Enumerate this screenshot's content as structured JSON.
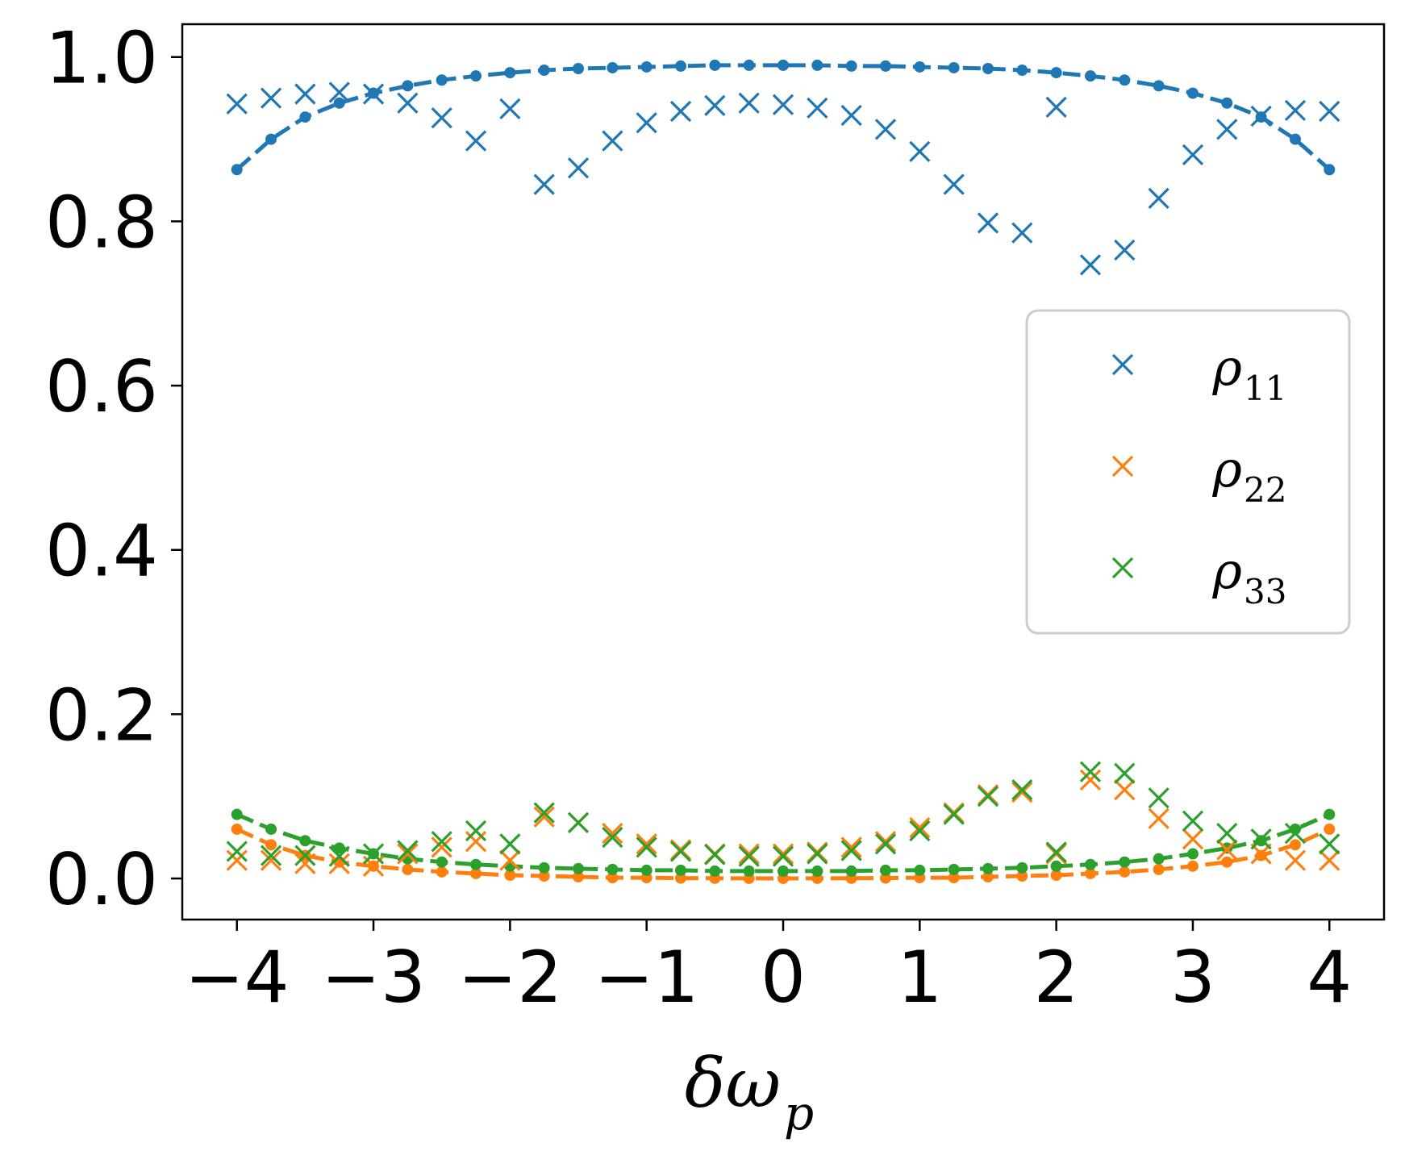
{
  "chart_data": {
    "type": "line",
    "title": "",
    "xlabel": "δω",
    "xlabel_sub": "p",
    "ylabel": "",
    "xlim": [
      -4.4,
      4.4
    ],
    "ylim": [
      -0.05,
      1.04
    ],
    "xticks": [
      -4,
      -3,
      -2,
      -1,
      0,
      1,
      2,
      3,
      4
    ],
    "xtick_labels": [
      "−4",
      "−3",
      "−2",
      "−1",
      "0",
      "1",
      "2",
      "3",
      "4"
    ],
    "yticks": [
      0.0,
      0.2,
      0.4,
      0.6,
      0.8,
      1.0
    ],
    "ytick_labels": [
      "0.0",
      "0.2",
      "0.4",
      "0.6",
      "0.8",
      "1.0"
    ],
    "legend_position": "center-right",
    "x": [
      -4,
      -3.75,
      -3.5,
      -3.25,
      -3,
      -2.75,
      -2.5,
      -2.25,
      -2,
      -1.75,
      -1.5,
      -1.25,
      -1,
      -0.75,
      -0.5,
      -0.25,
      0,
      0.25,
      0.5,
      0.75,
      1,
      1.25,
      1.5,
      1.75,
      2,
      2.25,
      2.5,
      2.75,
      3,
      3.25,
      3.5,
      3.75,
      4
    ],
    "series": [
      {
        "name": "ρ",
        "sub": "11",
        "color": "#1f77b4",
        "markers": [
          0.943,
          0.95,
          0.955,
          0.957,
          0.955,
          0.944,
          0.926,
          0.898,
          0.937,
          0.845,
          0.865,
          0.898,
          0.92,
          0.934,
          0.941,
          0.944,
          0.942,
          0.938,
          0.929,
          0.912,
          0.885,
          0.845,
          0.798,
          0.786,
          0.939,
          0.747,
          0.765,
          0.828,
          0.881,
          0.912,
          0.928,
          0.935,
          0.934
        ],
        "curve": [
          0.863,
          0.9,
          0.927,
          0.944,
          0.956,
          0.965,
          0.972,
          0.977,
          0.981,
          0.984,
          0.986,
          0.987,
          0.988,
          0.989,
          0.99,
          0.99,
          0.99,
          0.99,
          0.989,
          0.989,
          0.988,
          0.987,
          0.986,
          0.984,
          0.981,
          0.977,
          0.972,
          0.965,
          0.956,
          0.944,
          0.927,
          0.9,
          0.863
        ]
      },
      {
        "name": "ρ",
        "sub": "22",
        "color": "#ff7f0e",
        "markers": [
          0.022,
          0.022,
          0.018,
          0.018,
          0.015,
          0.03,
          0.038,
          0.045,
          0.022,
          0.075,
          0.068,
          0.055,
          0.042,
          0.035,
          0.03,
          0.03,
          0.03,
          0.032,
          0.038,
          0.045,
          0.062,
          0.08,
          0.102,
          0.105,
          0.03,
          0.12,
          0.108,
          0.073,
          0.048,
          0.035,
          0.03,
          0.022,
          0.022
        ],
        "curve": [
          0.06,
          0.041,
          0.028,
          0.02,
          0.015,
          0.011,
          0.008,
          0.006,
          0.004,
          0.003,
          0.002,
          0.001,
          0.001,
          0.0005,
          0.0003,
          0.0002,
          0.0001,
          0.0002,
          0.0003,
          0.0005,
          0.001,
          0.001,
          0.002,
          0.003,
          0.004,
          0.006,
          0.008,
          0.011,
          0.015,
          0.02,
          0.028,
          0.041,
          0.06
        ]
      },
      {
        "name": "ρ",
        "sub": "33",
        "color": "#2ca02c",
        "markers": [
          0.033,
          0.028,
          0.028,
          0.027,
          0.03,
          0.034,
          0.045,
          0.058,
          0.042,
          0.08,
          0.068,
          0.05,
          0.038,
          0.033,
          0.029,
          0.027,
          0.027,
          0.03,
          0.034,
          0.042,
          0.058,
          0.078,
          0.1,
          0.108,
          0.032,
          0.13,
          0.128,
          0.098,
          0.07,
          0.055,
          0.048,
          0.055,
          0.042
        ],
        "curve": [
          0.078,
          0.06,
          0.046,
          0.037,
          0.03,
          0.024,
          0.02,
          0.017,
          0.015,
          0.013,
          0.012,
          0.011,
          0.01,
          0.01,
          0.009,
          0.009,
          0.009,
          0.009,
          0.009,
          0.01,
          0.01,
          0.011,
          0.012,
          0.013,
          0.015,
          0.017,
          0.02,
          0.024,
          0.03,
          0.037,
          0.046,
          0.06,
          0.078
        ]
      }
    ]
  }
}
